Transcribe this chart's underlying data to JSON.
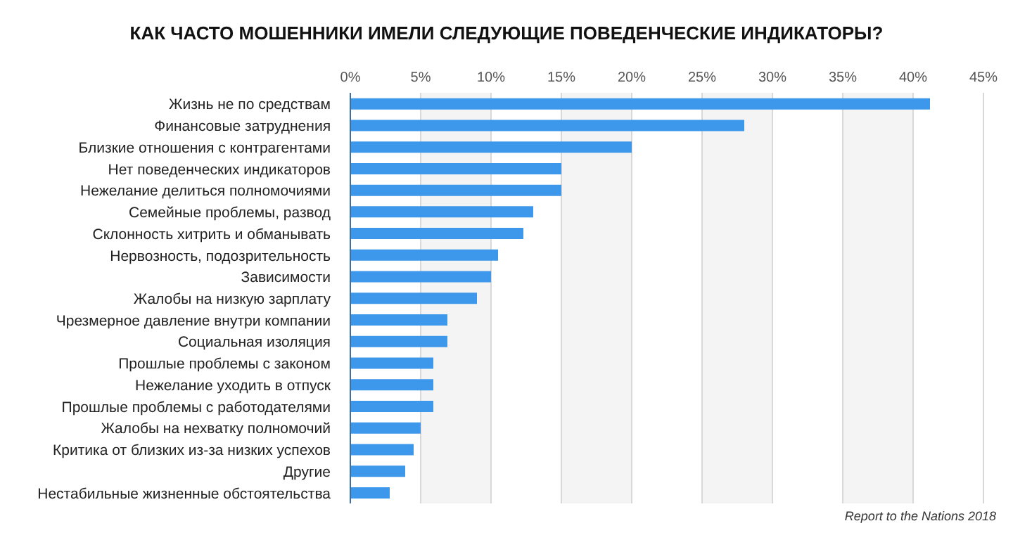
{
  "chart_data": {
    "type": "bar",
    "orientation": "horizontal",
    "title": "КАК ЧАСТО МОШЕННИКИ ИМЕЛИ СЛЕДУЮЩИЕ ПОВЕДЕНЧЕСКИЕ ИНДИКАТОРЫ?",
    "categories": [
      "Жизнь не по средствам",
      "Финансовые затруднения",
      "Близкие отношения с контрагентами",
      "Нет поведенческих индикаторов",
      "Нежелание делиться полномочиями",
      "Семейные проблемы, развод",
      "Склонность хитрить и обманывать",
      "Нервозность, подозрительность",
      "Зависимости",
      "Жалобы на низкую зарплату",
      "Чрезмерное давление внутри компании",
      "Социальная изоляция",
      "Прошлые проблемы с законом",
      "Нежелание уходить в отпуск",
      "Прошлые проблемы с работодателями",
      "Жалобы на нехватку полномочий",
      "Критика от близких из-за низких успехов",
      "Другие",
      "Нестабильные жизненные обстоятельства"
    ],
    "values": [
      41.2,
      28,
      20,
      15,
      15,
      13,
      12.3,
      10.5,
      10,
      9,
      6.9,
      6.9,
      5.9,
      5.9,
      5.9,
      5,
      4.5,
      3.9,
      2.8
    ],
    "color": "#3d97ea",
    "xlim": [
      0,
      45
    ],
    "xticks": [
      {
        "value": 0,
        "label": "0%"
      },
      {
        "value": 5,
        "label": "5%"
      },
      {
        "value": 10,
        "label": "10%"
      },
      {
        "value": 15,
        "label": "15%"
      },
      {
        "value": 20,
        "label": "20%"
      },
      {
        "value": 25,
        "label": "25%"
      },
      {
        "value": 30,
        "label": "30%"
      },
      {
        "value": 35,
        "label": "35%"
      },
      {
        "value": 40,
        "label": "40%"
      },
      {
        "value": 45,
        "label": "45%"
      }
    ],
    "grid": "x",
    "annotations": [
      "Report to the Nations 2018"
    ]
  }
}
